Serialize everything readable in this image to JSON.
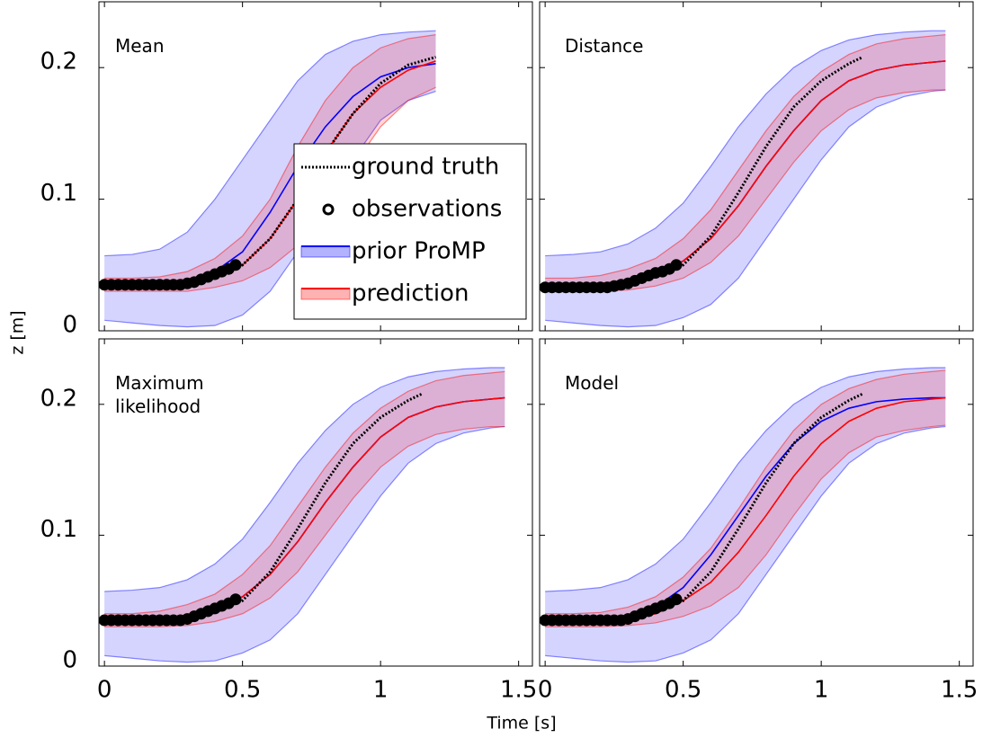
{
  "xlabel": "Time [s]",
  "ylabel": "z [m]",
  "chart_data": [
    {
      "type": "line",
      "title": "Mean",
      "xlim": [
        -0.02,
        1.55
      ],
      "ylim": [
        0,
        0.25
      ],
      "xticks": [
        0,
        0.5,
        1,
        1.5
      ],
      "yticks": [
        0,
        0.1,
        0.2
      ],
      "xtick_labels": false,
      "ytick_labels": true,
      "legend": "lower right",
      "series": [
        {
          "name": "ground truth",
          "color": "#000000",
          "style": "dotted",
          "x": [
            0,
            0.1,
            0.2,
            0.3,
            0.4,
            0.5,
            0.6,
            0.7,
            0.8,
            0.9,
            1.0,
            1.1,
            1.2
          ],
          "values": [
            0.035,
            0.035,
            0.035,
            0.036,
            0.041,
            0.05,
            0.07,
            0.1,
            0.135,
            0.165,
            0.188,
            0.202,
            0.208
          ]
        },
        {
          "name": "observations",
          "color": "#000000",
          "style": "markers",
          "x": [
            0,
            0.025,
            0.05,
            0.075,
            0.1,
            0.125,
            0.15,
            0.175,
            0.2,
            0.225,
            0.25,
            0.275,
            0.3,
            0.325,
            0.35,
            0.375,
            0.4,
            0.425,
            0.45,
            0.475
          ],
          "values": [
            0.035,
            0.035,
            0.035,
            0.035,
            0.035,
            0.035,
            0.035,
            0.035,
            0.035,
            0.035,
            0.035,
            0.035,
            0.036,
            0.037,
            0.039,
            0.041,
            0.043,
            0.045,
            0.047,
            0.05
          ]
        },
        {
          "name": "prior ProMP",
          "color": "#0000ff",
          "style": "band",
          "x": [
            0,
            0.1,
            0.2,
            0.3,
            0.4,
            0.5,
            0.6,
            0.7,
            0.8,
            0.9,
            1.0,
            1.1,
            1.2
          ],
          "values": [
            0.035,
            0.035,
            0.036,
            0.038,
            0.045,
            0.06,
            0.09,
            0.125,
            0.155,
            0.178,
            0.193,
            0.2,
            0.203
          ],
          "lower": [
            0.008,
            0.006,
            0.004,
            0.003,
            0.004,
            0.012,
            0.03,
            0.06,
            0.095,
            0.13,
            0.16,
            0.175,
            0.182
          ],
          "upper": [
            0.057,
            0.058,
            0.062,
            0.075,
            0.1,
            0.13,
            0.16,
            0.19,
            0.21,
            0.22,
            0.225,
            0.227,
            0.228
          ]
        },
        {
          "name": "prediction",
          "color": "#ff0000",
          "style": "band",
          "x": [
            0,
            0.1,
            0.2,
            0.3,
            0.4,
            0.5,
            0.6,
            0.7,
            0.8,
            0.9,
            1.0,
            1.1,
            1.2
          ],
          "values": [
            0.035,
            0.035,
            0.035,
            0.036,
            0.04,
            0.05,
            0.07,
            0.1,
            0.135,
            0.165,
            0.185,
            0.198,
            0.205
          ],
          "lower": [
            0.03,
            0.03,
            0.03,
            0.03,
            0.033,
            0.038,
            0.048,
            0.065,
            0.095,
            0.125,
            0.155,
            0.175,
            0.185
          ],
          "upper": [
            0.04,
            0.04,
            0.041,
            0.045,
            0.055,
            0.072,
            0.1,
            0.14,
            0.175,
            0.2,
            0.215,
            0.222,
            0.225
          ]
        }
      ]
    },
    {
      "type": "line",
      "title": "Distance",
      "xlim": [
        -0.02,
        1.55
      ],
      "ylim": [
        0,
        0.25
      ],
      "xticks": [
        0,
        0.5,
        1,
        1.5
      ],
      "yticks": [
        0,
        0.1,
        0.2
      ],
      "xtick_labels": false,
      "ytick_labels": false,
      "series": [
        {
          "color": "#000000",
          "style": "dotted",
          "x": [
            0,
            0.1,
            0.2,
            0.3,
            0.4,
            0.5,
            0.6,
            0.7,
            0.8,
            0.9,
            1.0,
            1.1,
            1.15
          ],
          "values": [
            0.035,
            0.035,
            0.035,
            0.036,
            0.041,
            0.05,
            0.072,
            0.105,
            0.14,
            0.17,
            0.19,
            0.203,
            0.208
          ]
        },
        {
          "color": "#000000",
          "style": "markers",
          "x": [
            0,
            0.025,
            0.05,
            0.075,
            0.1,
            0.125,
            0.15,
            0.175,
            0.2,
            0.225,
            0.25,
            0.275,
            0.3,
            0.325,
            0.35,
            0.375,
            0.4,
            0.425,
            0.45,
            0.475
          ],
          "values": [
            0.033,
            0.033,
            0.033,
            0.033,
            0.033,
            0.033,
            0.033,
            0.033,
            0.033,
            0.033,
            0.034,
            0.035,
            0.036,
            0.038,
            0.04,
            0.042,
            0.044,
            0.045,
            0.047,
            0.05
          ]
        },
        {
          "color": "#0000ff",
          "style": "band",
          "x": [
            0,
            0.1,
            0.2,
            0.3,
            0.4,
            0.5,
            0.6,
            0.7,
            0.8,
            0.9,
            1.0,
            1.1,
            1.2,
            1.3,
            1.4,
            1.45
          ],
          "values": [
            0.035,
            0.035,
            0.036,
            0.038,
            0.043,
            0.053,
            0.07,
            0.095,
            0.125,
            0.152,
            0.175,
            0.19,
            0.198,
            0.202,
            0.204,
            0.205
          ],
          "lower": [
            0.008,
            0.006,
            0.004,
            0.003,
            0.004,
            0.01,
            0.02,
            0.04,
            0.07,
            0.1,
            0.13,
            0.155,
            0.17,
            0.178,
            0.182,
            0.183
          ],
          "upper": [
            0.057,
            0.058,
            0.06,
            0.066,
            0.078,
            0.097,
            0.125,
            0.155,
            0.18,
            0.2,
            0.213,
            0.221,
            0.225,
            0.227,
            0.228,
            0.228
          ]
        },
        {
          "color": "#ff0000",
          "style": "band",
          "x": [
            0,
            0.1,
            0.2,
            0.3,
            0.4,
            0.5,
            0.6,
            0.7,
            0.8,
            0.9,
            1.0,
            1.1,
            1.2,
            1.3,
            1.4,
            1.45
          ],
          "values": [
            0.035,
            0.035,
            0.036,
            0.038,
            0.043,
            0.053,
            0.07,
            0.095,
            0.125,
            0.152,
            0.175,
            0.19,
            0.198,
            0.202,
            0.204,
            0.205
          ],
          "lower": [
            0.03,
            0.03,
            0.03,
            0.031,
            0.034,
            0.04,
            0.052,
            0.072,
            0.1,
            0.128,
            0.152,
            0.168,
            0.177,
            0.181,
            0.183,
            0.183
          ],
          "upper": [
            0.04,
            0.04,
            0.042,
            0.047,
            0.055,
            0.07,
            0.092,
            0.122,
            0.152,
            0.178,
            0.197,
            0.21,
            0.218,
            0.222,
            0.224,
            0.225
          ]
        }
      ]
    },
    {
      "type": "line",
      "title": "Maximum likelihood",
      "xlim": [
        -0.02,
        1.55
      ],
      "ylim": [
        0,
        0.25
      ],
      "xticks": [
        0,
        0.5,
        1,
        1.5
      ],
      "yticks": [
        0,
        0.1,
        0.2
      ],
      "xtick_labels": true,
      "ytick_labels": true,
      "series": [
        {
          "color": "#000000",
          "style": "dotted",
          "x": [
            0,
            0.1,
            0.2,
            0.3,
            0.4,
            0.5,
            0.6,
            0.7,
            0.8,
            0.9,
            1.0,
            1.1,
            1.15
          ],
          "values": [
            0.035,
            0.035,
            0.035,
            0.036,
            0.041,
            0.05,
            0.072,
            0.105,
            0.14,
            0.17,
            0.19,
            0.203,
            0.208
          ]
        },
        {
          "color": "#000000",
          "style": "markers",
          "x": [
            0,
            0.025,
            0.05,
            0.075,
            0.1,
            0.125,
            0.15,
            0.175,
            0.2,
            0.225,
            0.25,
            0.275,
            0.3,
            0.325,
            0.35,
            0.375,
            0.4,
            0.425,
            0.45,
            0.475
          ],
          "values": [
            0.035,
            0.035,
            0.035,
            0.035,
            0.035,
            0.035,
            0.035,
            0.035,
            0.035,
            0.035,
            0.035,
            0.035,
            0.036,
            0.038,
            0.04,
            0.042,
            0.044,
            0.046,
            0.048,
            0.051
          ]
        },
        {
          "color": "#0000ff",
          "style": "band",
          "x": [
            0,
            0.1,
            0.2,
            0.3,
            0.4,
            0.5,
            0.6,
            0.7,
            0.8,
            0.9,
            1.0,
            1.1,
            1.2,
            1.3,
            1.4,
            1.45
          ],
          "values": [
            0.035,
            0.035,
            0.036,
            0.038,
            0.043,
            0.053,
            0.07,
            0.095,
            0.125,
            0.152,
            0.175,
            0.19,
            0.198,
            0.202,
            0.204,
            0.205
          ],
          "lower": [
            0.008,
            0.006,
            0.004,
            0.003,
            0.004,
            0.01,
            0.02,
            0.04,
            0.07,
            0.1,
            0.13,
            0.155,
            0.17,
            0.178,
            0.182,
            0.183
          ],
          "upper": [
            0.057,
            0.058,
            0.06,
            0.066,
            0.078,
            0.097,
            0.125,
            0.155,
            0.18,
            0.2,
            0.213,
            0.221,
            0.225,
            0.227,
            0.228,
            0.228
          ]
        },
        {
          "color": "#ff0000",
          "style": "band",
          "x": [
            0,
            0.1,
            0.2,
            0.3,
            0.4,
            0.5,
            0.6,
            0.7,
            0.8,
            0.9,
            1.0,
            1.1,
            1.2,
            1.3,
            1.4,
            1.45
          ],
          "values": [
            0.035,
            0.035,
            0.036,
            0.038,
            0.043,
            0.053,
            0.07,
            0.095,
            0.125,
            0.152,
            0.175,
            0.19,
            0.198,
            0.202,
            0.204,
            0.205
          ],
          "lower": [
            0.03,
            0.03,
            0.03,
            0.031,
            0.034,
            0.04,
            0.052,
            0.072,
            0.1,
            0.128,
            0.152,
            0.168,
            0.177,
            0.181,
            0.183,
            0.183
          ],
          "upper": [
            0.04,
            0.04,
            0.042,
            0.047,
            0.055,
            0.07,
            0.092,
            0.122,
            0.152,
            0.178,
            0.197,
            0.21,
            0.218,
            0.222,
            0.224,
            0.225
          ]
        }
      ]
    },
    {
      "type": "line",
      "title": "Model",
      "xlim": [
        -0.02,
        1.55
      ],
      "ylim": [
        0,
        0.25
      ],
      "xticks": [
        0,
        0.5,
        1,
        1.5
      ],
      "yticks": [
        0,
        0.1,
        0.2
      ],
      "xtick_labels": true,
      "ytick_labels": false,
      "series": [
        {
          "color": "#000000",
          "style": "dotted",
          "x": [
            0,
            0.1,
            0.2,
            0.3,
            0.4,
            0.5,
            0.6,
            0.7,
            0.8,
            0.9,
            1.0,
            1.1,
            1.15
          ],
          "values": [
            0.035,
            0.035,
            0.035,
            0.036,
            0.041,
            0.05,
            0.072,
            0.105,
            0.14,
            0.17,
            0.19,
            0.203,
            0.208
          ]
        },
        {
          "color": "#000000",
          "style": "markers",
          "x": [
            0,
            0.025,
            0.05,
            0.075,
            0.1,
            0.125,
            0.15,
            0.175,
            0.2,
            0.225,
            0.25,
            0.275,
            0.3,
            0.325,
            0.35,
            0.375,
            0.4,
            0.425,
            0.45,
            0.475
          ],
          "values": [
            0.035,
            0.035,
            0.035,
            0.035,
            0.035,
            0.035,
            0.035,
            0.035,
            0.035,
            0.035,
            0.035,
            0.035,
            0.036,
            0.038,
            0.04,
            0.042,
            0.044,
            0.046,
            0.048,
            0.051
          ]
        },
        {
          "color": "#0000ff",
          "style": "band",
          "x": [
            0,
            0.1,
            0.2,
            0.3,
            0.4,
            0.5,
            0.6,
            0.7,
            0.8,
            0.9,
            1.0,
            1.1,
            1.2,
            1.3,
            1.4,
            1.45
          ],
          "values": [
            0.035,
            0.035,
            0.036,
            0.038,
            0.045,
            0.06,
            0.085,
            0.115,
            0.145,
            0.17,
            0.187,
            0.197,
            0.202,
            0.204,
            0.205,
            0.205
          ],
          "lower": [
            0.008,
            0.006,
            0.004,
            0.003,
            0.004,
            0.01,
            0.02,
            0.04,
            0.07,
            0.1,
            0.13,
            0.155,
            0.17,
            0.178,
            0.182,
            0.183
          ],
          "upper": [
            0.057,
            0.058,
            0.06,
            0.066,
            0.078,
            0.097,
            0.125,
            0.155,
            0.18,
            0.2,
            0.213,
            0.221,
            0.225,
            0.227,
            0.228,
            0.228
          ]
        },
        {
          "color": "#ff0000",
          "style": "band",
          "x": [
            0,
            0.1,
            0.2,
            0.3,
            0.4,
            0.5,
            0.6,
            0.7,
            0.8,
            0.9,
            1.0,
            1.1,
            1.2,
            1.3,
            1.4,
            1.45
          ],
          "values": [
            0.035,
            0.035,
            0.035,
            0.036,
            0.04,
            0.05,
            0.064,
            0.087,
            0.115,
            0.145,
            0.17,
            0.187,
            0.197,
            0.202,
            0.204,
            0.205
          ],
          "lower": [
            0.03,
            0.03,
            0.03,
            0.031,
            0.033,
            0.038,
            0.046,
            0.06,
            0.085,
            0.115,
            0.143,
            0.163,
            0.175,
            0.18,
            0.183,
            0.184
          ],
          "upper": [
            0.04,
            0.04,
            0.041,
            0.045,
            0.053,
            0.068,
            0.09,
            0.12,
            0.152,
            0.18,
            0.2,
            0.212,
            0.219,
            0.223,
            0.225,
            0.226
          ]
        }
      ]
    }
  ]
}
